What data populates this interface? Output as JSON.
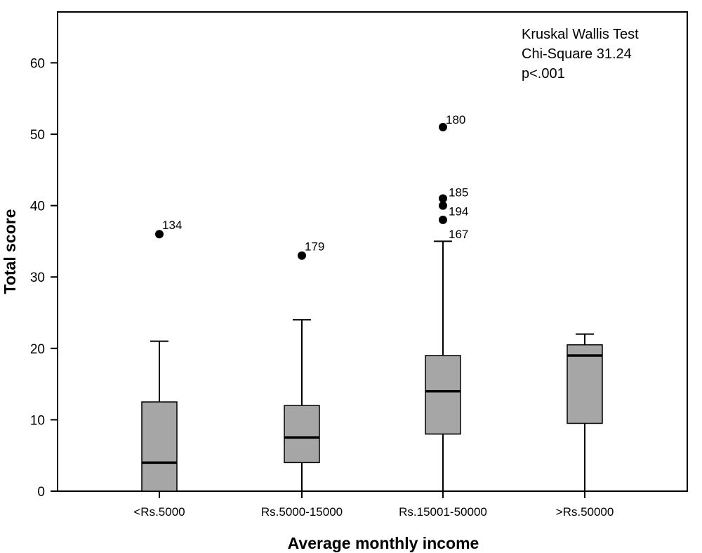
{
  "chart_data": {
    "type": "box",
    "xlabel": "Average monthly income",
    "ylabel": "Total score",
    "ylim": [
      0,
      65
    ],
    "yticks": [
      0,
      10,
      20,
      30,
      40,
      50,
      60
    ],
    "annotation": [
      "Kruskal Wallis Test",
      "Chi-Square 31.24",
      "p<.001"
    ],
    "colors": {
      "box_fill": "#a6a6a6",
      "outlier": "#000000"
    },
    "groups": [
      {
        "label": "<Rs.5000",
        "min": 0,
        "q1": 0,
        "median": 4,
        "q3": 12.5,
        "max": 21,
        "outliers": [
          {
            "label": "134",
            "value": 36
          }
        ]
      },
      {
        "label": "Rs.5000-15000",
        "min": 0,
        "q1": 4,
        "median": 7.5,
        "q3": 12,
        "max": 24,
        "outliers": [
          {
            "label": "179",
            "value": 33
          }
        ]
      },
      {
        "label": "Rs.15001-50000",
        "min": 0,
        "q1": 8,
        "median": 14,
        "q3": 19,
        "max": 35,
        "outliers": [
          {
            "label": "180",
            "value": 51
          },
          {
            "label": "185",
            "value": 41
          },
          {
            "label": "194",
            "value": 40
          },
          {
            "label": "167",
            "value": 38
          }
        ]
      },
      {
        "label": ">Rs.50000",
        "min": 0,
        "q1": 9.5,
        "median": 19,
        "q3": 20.5,
        "max": 22,
        "outliers": []
      }
    ]
  }
}
